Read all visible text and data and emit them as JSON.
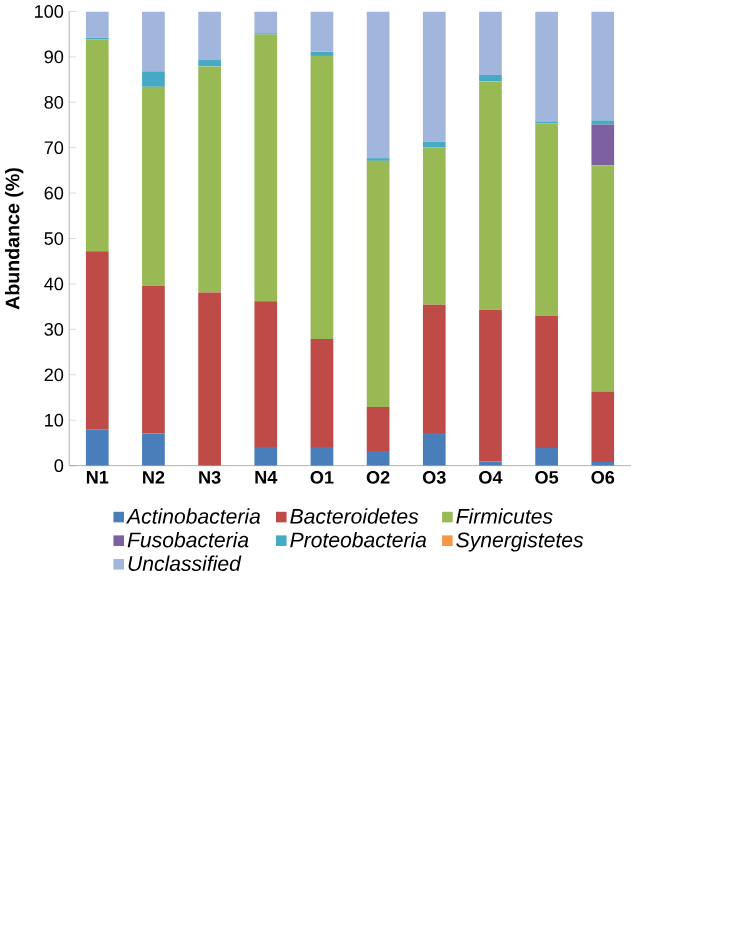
{
  "chart_data": {
    "type": "bar",
    "stacked": true,
    "ylabel": "Abundance (%)",
    "categories": [
      "N1",
      "N2",
      "N3",
      "N4",
      "O1",
      "O2",
      "O3",
      "O4",
      "O5",
      "O6"
    ],
    "ylim": [
      0,
      100
    ],
    "yticks": [
      0,
      10,
      20,
      30,
      40,
      50,
      60,
      70,
      80,
      90,
      100
    ],
    "grid": false,
    "legend": "bottom",
    "series": [
      {
        "name": "*Actinobacteria*",
        "color": "#4a7ebb",
        "values": [
          8.0,
          7.1,
          0,
          4.1,
          4.1,
          3.2,
          7.2,
          0.9,
          3.9,
          0.8
        ]
      },
      {
        "name": "*Bacteroidetes*",
        "color": "#be4b48",
        "values": [
          39.2,
          32.5,
          38.1,
          32.1,
          23.8,
          9.7,
          28.2,
          33.4,
          29.1,
          15.5
        ]
      },
      {
        "name": "*Firmicutes*",
        "color": "#98b954",
        "values": [
          46.7,
          43.8,
          49.8,
          58.7,
          62.3,
          54.2,
          34.7,
          50.3,
          42.4,
          49.8
        ]
      },
      {
        "name": "*Fusobacteria*",
        "color": "#7d60a0",
        "values": [
          0,
          0,
          0,
          0,
          0,
          0,
          0,
          0,
          0,
          9.0
        ]
      },
      {
        "name": "*Proteobacteria*",
        "color": "#46aac5",
        "values": [
          0.3,
          3.4,
          1.4,
          0.3,
          0.9,
          0.6,
          1.2,
          1.4,
          0.4,
          0.9
        ]
      },
      {
        "name": "*Synergistetes*",
        "color": "#f79646",
        "values": [
          0,
          0,
          0,
          0,
          0,
          0,
          0,
          0,
          0,
          0
        ]
      },
      {
        "name": "*Unclassified*",
        "color": "#a2b6dd",
        "values": [
          5.8,
          13.2,
          10.7,
          4.8,
          8.9,
          32.3,
          28.7,
          14.0,
          24.2,
          24.0
        ]
      }
    ]
  }
}
